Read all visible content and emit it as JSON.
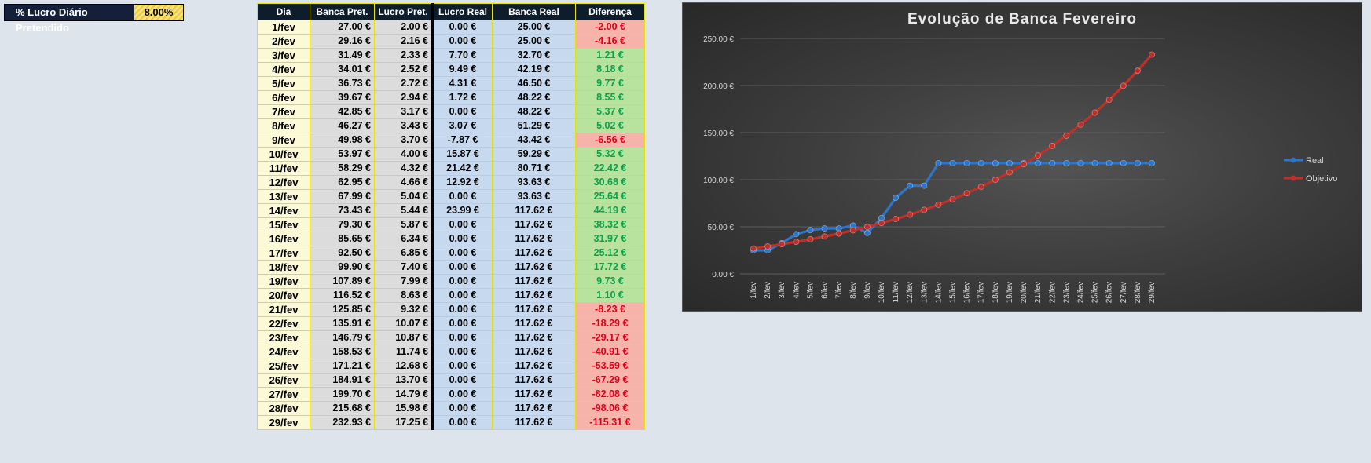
{
  "param": {
    "label": "% Lucro Diário Pretendido",
    "value": "8.00%"
  },
  "table": {
    "headers": [
      "Dia",
      "Banca Pret.",
      "Lucro Pret.",
      "Lucro Real",
      "Banca Real",
      "Diferença"
    ],
    "rows": [
      [
        "1/fev",
        "27.00 €",
        "2.00 €",
        "0.00 €",
        "25.00 €",
        "-2.00 €"
      ],
      [
        "2/fev",
        "29.16 €",
        "2.16 €",
        "0.00 €",
        "25.00 €",
        "-4.16 €"
      ],
      [
        "3/fev",
        "31.49 €",
        "2.33 €",
        "7.70 €",
        "32.70 €",
        "1.21 €"
      ],
      [
        "4/fev",
        "34.01 €",
        "2.52 €",
        "9.49 €",
        "42.19 €",
        "8.18 €"
      ],
      [
        "5/fev",
        "36.73 €",
        "2.72 €",
        "4.31 €",
        "46.50 €",
        "9.77 €"
      ],
      [
        "6/fev",
        "39.67 €",
        "2.94 €",
        "1.72 €",
        "48.22 €",
        "8.55 €"
      ],
      [
        "7/fev",
        "42.85 €",
        "3.17 €",
        "0.00 €",
        "48.22 €",
        "5.37 €"
      ],
      [
        "8/fev",
        "46.27 €",
        "3.43 €",
        "3.07 €",
        "51.29 €",
        "5.02 €"
      ],
      [
        "9/fev",
        "49.98 €",
        "3.70 €",
        "-7.87 €",
        "43.42 €",
        "-6.56 €"
      ],
      [
        "10/fev",
        "53.97 €",
        "4.00 €",
        "15.87 €",
        "59.29 €",
        "5.32 €"
      ],
      [
        "11/fev",
        "58.29 €",
        "4.32 €",
        "21.42 €",
        "80.71 €",
        "22.42 €"
      ],
      [
        "12/fev",
        "62.95 €",
        "4.66 €",
        "12.92 €",
        "93.63 €",
        "30.68 €"
      ],
      [
        "13/fev",
        "67.99 €",
        "5.04 €",
        "0.00 €",
        "93.63 €",
        "25.64 €"
      ],
      [
        "14/fev",
        "73.43 €",
        "5.44 €",
        "23.99 €",
        "117.62 €",
        "44.19 €"
      ],
      [
        "15/fev",
        "79.30 €",
        "5.87 €",
        "0.00 €",
        "117.62 €",
        "38.32 €"
      ],
      [
        "16/fev",
        "85.65 €",
        "6.34 €",
        "0.00 €",
        "117.62 €",
        "31.97 €"
      ],
      [
        "17/fev",
        "92.50 €",
        "6.85 €",
        "0.00 €",
        "117.62 €",
        "25.12 €"
      ],
      [
        "18/fev",
        "99.90 €",
        "7.40 €",
        "0.00 €",
        "117.62 €",
        "17.72 €"
      ],
      [
        "19/fev",
        "107.89 €",
        "7.99 €",
        "0.00 €",
        "117.62 €",
        "9.73 €"
      ],
      [
        "20/fev",
        "116.52 €",
        "8.63 €",
        "0.00 €",
        "117.62 €",
        "1.10 €"
      ],
      [
        "21/fev",
        "125.85 €",
        "9.32 €",
        "0.00 €",
        "117.62 €",
        "-8.23 €"
      ],
      [
        "22/fev",
        "135.91 €",
        "10.07 €",
        "0.00 €",
        "117.62 €",
        "-18.29 €"
      ],
      [
        "23/fev",
        "146.79 €",
        "10.87 €",
        "0.00 €",
        "117.62 €",
        "-29.17 €"
      ],
      [
        "24/fev",
        "158.53 €",
        "11.74 €",
        "0.00 €",
        "117.62 €",
        "-40.91 €"
      ],
      [
        "25/fev",
        "171.21 €",
        "12.68 €",
        "0.00 €",
        "117.62 €",
        "-53.59 €"
      ],
      [
        "26/fev",
        "184.91 €",
        "13.70 €",
        "0.00 €",
        "117.62 €",
        "-67.29 €"
      ],
      [
        "27/fev",
        "199.70 €",
        "14.79 €",
        "0.00 €",
        "117.62 €",
        "-82.08 €"
      ],
      [
        "28/fev",
        "215.68 €",
        "15.98 €",
        "0.00 €",
        "117.62 €",
        "-98.06 €"
      ],
      [
        "29/fev",
        "232.93 €",
        "17.25 €",
        "0.00 €",
        "117.62 €",
        "-115.31 €"
      ]
    ]
  },
  "colors": {
    "header_bg": "#0e1d2b",
    "grid_border": "#e8e000",
    "positive_bg": "#b8e39e",
    "positive_text": "#0aa24a",
    "negative_bg": "#f6b3a9",
    "negative_text": "#e0001a",
    "series_real": "#2e75c8",
    "series_objetivo": "#c0302a"
  },
  "chart_data": {
    "type": "line",
    "title": "Evolução de Banca Fevereiro",
    "categories": [
      "1/fev",
      "2/fev",
      "3/fev",
      "4/fev",
      "5/fev",
      "6/fev",
      "7/fev",
      "8/fev",
      "9/fev",
      "10/fev",
      "11/fev",
      "12/fev",
      "13/fev",
      "14/fev",
      "15/fev",
      "16/fev",
      "17/fev",
      "18/fev",
      "19/fev",
      "20/fev",
      "21/fev",
      "22/fev",
      "23/fev",
      "24/fev",
      "25/fev",
      "26/fev",
      "27/fev",
      "28/fev",
      "29/fev"
    ],
    "yticks": [
      "0.00 €",
      "50.00 €",
      "100.00 €",
      "150.00 €",
      "200.00 €",
      "250.00 €"
    ],
    "ylim": [
      0,
      250
    ],
    "grid": true,
    "legend": "right",
    "series": [
      {
        "name": "Real",
        "color": "#2e75c8",
        "values": [
          25.0,
          25.0,
          32.7,
          42.19,
          46.5,
          48.22,
          48.22,
          51.29,
          43.42,
          59.29,
          80.71,
          93.63,
          93.63,
          117.62,
          117.62,
          117.62,
          117.62,
          117.62,
          117.62,
          117.62,
          117.62,
          117.62,
          117.62,
          117.62,
          117.62,
          117.62,
          117.62,
          117.62,
          117.62
        ]
      },
      {
        "name": "Objetivo",
        "color": "#c0302a",
        "values": [
          27.0,
          29.16,
          31.49,
          34.01,
          36.73,
          39.67,
          42.85,
          46.27,
          49.98,
          53.97,
          58.29,
          62.95,
          67.99,
          73.43,
          79.3,
          85.65,
          92.5,
          99.9,
          107.89,
          116.52,
          125.85,
          135.91,
          146.79,
          158.53,
          171.21,
          184.91,
          199.7,
          215.68,
          232.93
        ]
      }
    ]
  }
}
